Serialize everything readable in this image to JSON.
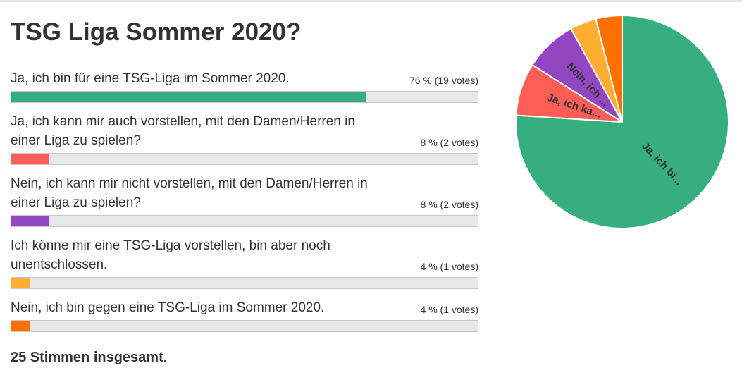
{
  "chart_data": {
    "type": "bar",
    "title": "TSG Liga Sommer 2020?",
    "categories": [
      "Ja, ich bin für eine TSG-Liga im Sommer 2020.",
      "Ja, ich kann mir auch vorstellen, mit den Damen/Herren in einer Liga zu spielen?",
      "Nein, ich kann mir nicht vorstellen, mit den Damen/Herren in einer Liga zu spielen?",
      "Ich könne mir eine TSG-Liga vorstellen, bin aber noch unentschlossen.",
      "Nein, ich bin gegen eine TSG-Liga im Sommer 2020."
    ],
    "values": [
      19,
      2,
      2,
      1,
      1
    ],
    "percent_labels": [
      "76 % (19 votes)",
      "8 % (2 votes)",
      "8 % (2 votes)",
      "4 % (1 votes)",
      "4 % (1 votes)"
    ],
    "colors": [
      "#36ae80",
      "#fe5e55",
      "#9346c2",
      "#fdae33",
      "#fe7101"
    ],
    "pie_labels": [
      "Ja, ich bi...",
      "Ja, ich ka...",
      "Nein, ich ...",
      "",
      ""
    ],
    "total_label": "25 Stimmen insgesamt."
  }
}
